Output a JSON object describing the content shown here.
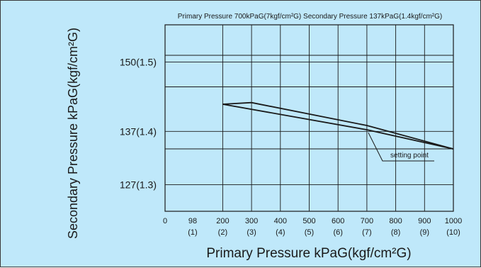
{
  "chart_data": {
    "type": "line",
    "title": "Primary Pressure 700kPaG(7kgf/cm²G) Secondary Pressure 137kPaG(1.4kgf/cm²G)",
    "xlabel": "Primary Pressure kPaG(kgf/cm²G)",
    "ylabel": "Secondary Pressure kPaG(kgf/cm²G)",
    "xlim": [
      0,
      1000
    ],
    "ylim": [
      122,
      157
    ],
    "grid": true,
    "x_ticks": [
      {
        "value": 0,
        "label": "0",
        "sub": ""
      },
      {
        "value": 98,
        "label": "98",
        "sub": "(1)"
      },
      {
        "value": 200,
        "label": "200",
        "sub": "(2)"
      },
      {
        "value": 300,
        "label": "300",
        "sub": "(3)"
      },
      {
        "value": 400,
        "label": "400",
        "sub": "(4)"
      },
      {
        "value": 500,
        "label": "500",
        "sub": "(5)"
      },
      {
        "value": 600,
        "label": "600",
        "sub": "(6)"
      },
      {
        "value": 700,
        "label": "700",
        "sub": "(7)"
      },
      {
        "value": 800,
        "label": "800",
        "sub": "(8)"
      },
      {
        "value": 900,
        "label": "900",
        "sub": "(9)"
      },
      {
        "value": 1000,
        "label": "1000",
        "sub": "(10)"
      }
    ],
    "y_ticks": [
      {
        "value": 150,
        "label": "150(1.5)"
      },
      {
        "value": 137,
        "label": "137(1.4)"
      },
      {
        "value": 127,
        "label": "127(1.3)"
      }
    ],
    "series": [
      {
        "x": [
          200,
          300,
          700,
          1000
        ],
        "y": [
          142.1,
          142.4,
          138.1,
          133.7
        ]
      },
      {
        "x": [
          1000,
          700,
          200
        ],
        "y": [
          133.7,
          137.3,
          142.1
        ]
      }
    ],
    "annotation": {
      "text": "setting point",
      "x": 700,
      "y": 137.3
    }
  }
}
